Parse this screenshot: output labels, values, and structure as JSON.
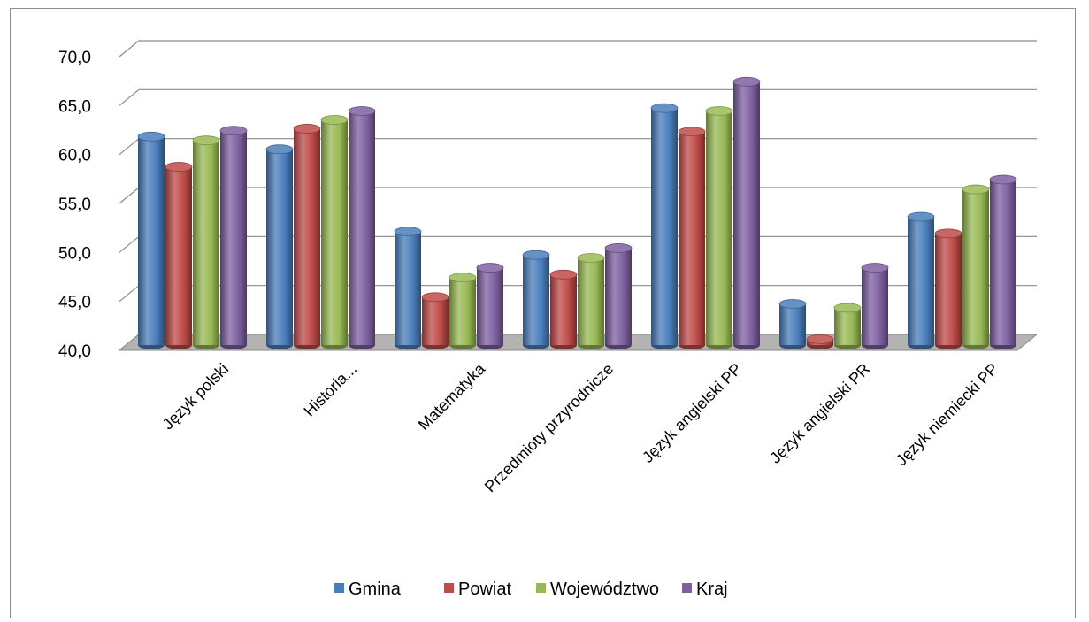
{
  "chart_data": {
    "type": "bar",
    "categories": [
      "Język polski",
      "Historia...",
      "Matematyka",
      "Przedmioty przyrodnicze",
      "Język angielski PP",
      "Język angielski PR",
      "Język niemiecki PP"
    ],
    "series": [
      {
        "name": "Gmina",
        "color": "#4a7ebb",
        "values": [
          61.3,
          60.0,
          51.6,
          49.2,
          64.2,
          44.2,
          53.1
        ]
      },
      {
        "name": "Powiat",
        "color": "#be4b48",
        "values": [
          58.2,
          62.1,
          44.9,
          47.2,
          61.8,
          40.6,
          51.4
        ]
      },
      {
        "name": "Województwo",
        "color": "#98b954",
        "values": [
          60.9,
          63.0,
          46.9,
          48.9,
          63.9,
          43.8,
          55.9
        ]
      },
      {
        "name": "Kraj",
        "color": "#7d60a0",
        "values": [
          61.9,
          63.9,
          47.9,
          49.9,
          66.9,
          47.9,
          56.9
        ]
      }
    ],
    "yticks": [
      "70,0",
      "65,0",
      "60,0",
      "55,0",
      "50,0",
      "45,0",
      "40,0"
    ],
    "ylim": [
      40,
      70
    ],
    "grid": true,
    "legend_position": "bottom"
  }
}
